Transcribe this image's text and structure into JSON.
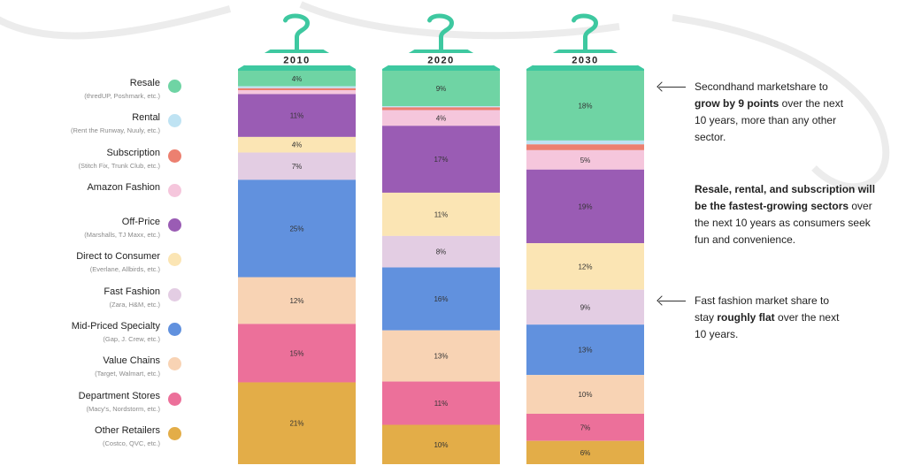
{
  "chart_data": {
    "type": "bar",
    "stacked": true,
    "categories": [
      "2010",
      "2020",
      "2030"
    ],
    "series": [
      {
        "name": "Resale",
        "subtitle": "(thredUP, Poshmark, etc.)",
        "color": "#6fd4a4",
        "values": [
          4,
          9,
          18
        ]
      },
      {
        "name": "Rental",
        "subtitle": "(Rent the Runway, Nuuly, etc.)",
        "color": "#bfe3f3",
        "values": [
          0.5,
          0.3,
          1
        ]
      },
      {
        "name": "Subscription",
        "subtitle": "(Stitch Fix, Trunk Club, etc.)",
        "color": "#ec8070",
        "values": [
          0.5,
          0.7,
          1.5
        ]
      },
      {
        "name": "Amazon Fashion",
        "subtitle": "",
        "color": "#f5c6dc",
        "values": [
          1,
          4,
          5
        ]
      },
      {
        "name": "Off-Price",
        "subtitle": "(Marshalls, TJ Maxx, etc.)",
        "color": "#9a5cb4",
        "values": [
          11,
          17,
          19
        ]
      },
      {
        "name": "Direct to Consumer",
        "subtitle": "(Everlane, Allbirds, etc.)",
        "color": "#fbe5b4",
        "values": [
          4,
          11,
          12
        ]
      },
      {
        "name": "Fast Fashion",
        "subtitle": "(Zara, H&M, etc.)",
        "color": "#e3cde3",
        "values": [
          7,
          8,
          9
        ]
      },
      {
        "name": "Mid-Priced Specialty",
        "subtitle": "(Gap, J. Crew, etc.)",
        "color": "#6191de",
        "values": [
          25,
          16,
          13
        ]
      },
      {
        "name": "Value Chains",
        "subtitle": "(Target, Walmart, etc.)",
        "color": "#f8d3b4",
        "values": [
          12,
          13,
          10
        ]
      },
      {
        "name": "Department Stores",
        "subtitle": "(Macy's, Nordstorm, etc.)",
        "color": "#ec709a",
        "values": [
          15,
          11,
          7
        ]
      },
      {
        "name": "Other Retailers",
        "subtitle": "(Costco, QVC, etc.)",
        "color": "#e3ad48",
        "values": [
          21,
          10,
          6
        ]
      }
    ],
    "data_labels": [
      [
        "4%",
        "",
        "",
        "",
        "11%",
        "4%",
        "7%",
        "25%",
        "12%",
        "15%",
        "21%"
      ],
      [
        "9%",
        "",
        "",
        "4%",
        "17%",
        "11%",
        "8%",
        "16%",
        "13%",
        "11%",
        "10%"
      ],
      [
        "18%",
        "",
        "",
        "5%",
        "19%",
        "12%",
        "9%",
        "13%",
        "10%",
        "7%",
        "6%"
      ]
    ],
    "hanger_color": "#3ec8a0",
    "swoosh_color": "#ececec"
  },
  "annotations": {
    "a1": {
      "pre": "Secondhand marketshare to ",
      "bold": "grow by 9 points",
      "post": " over the next 10 years, more than any other sector."
    },
    "a2": {
      "bold": "Resale, rental, and subscription will be the fastest-growing sectors",
      "post": " over the next 10 years as consumers seek fun and convenience."
    },
    "a3": {
      "pre": "Fast fashion market share to stay ",
      "bold": "roughly flat",
      "post": " over the next 10 years."
    }
  }
}
